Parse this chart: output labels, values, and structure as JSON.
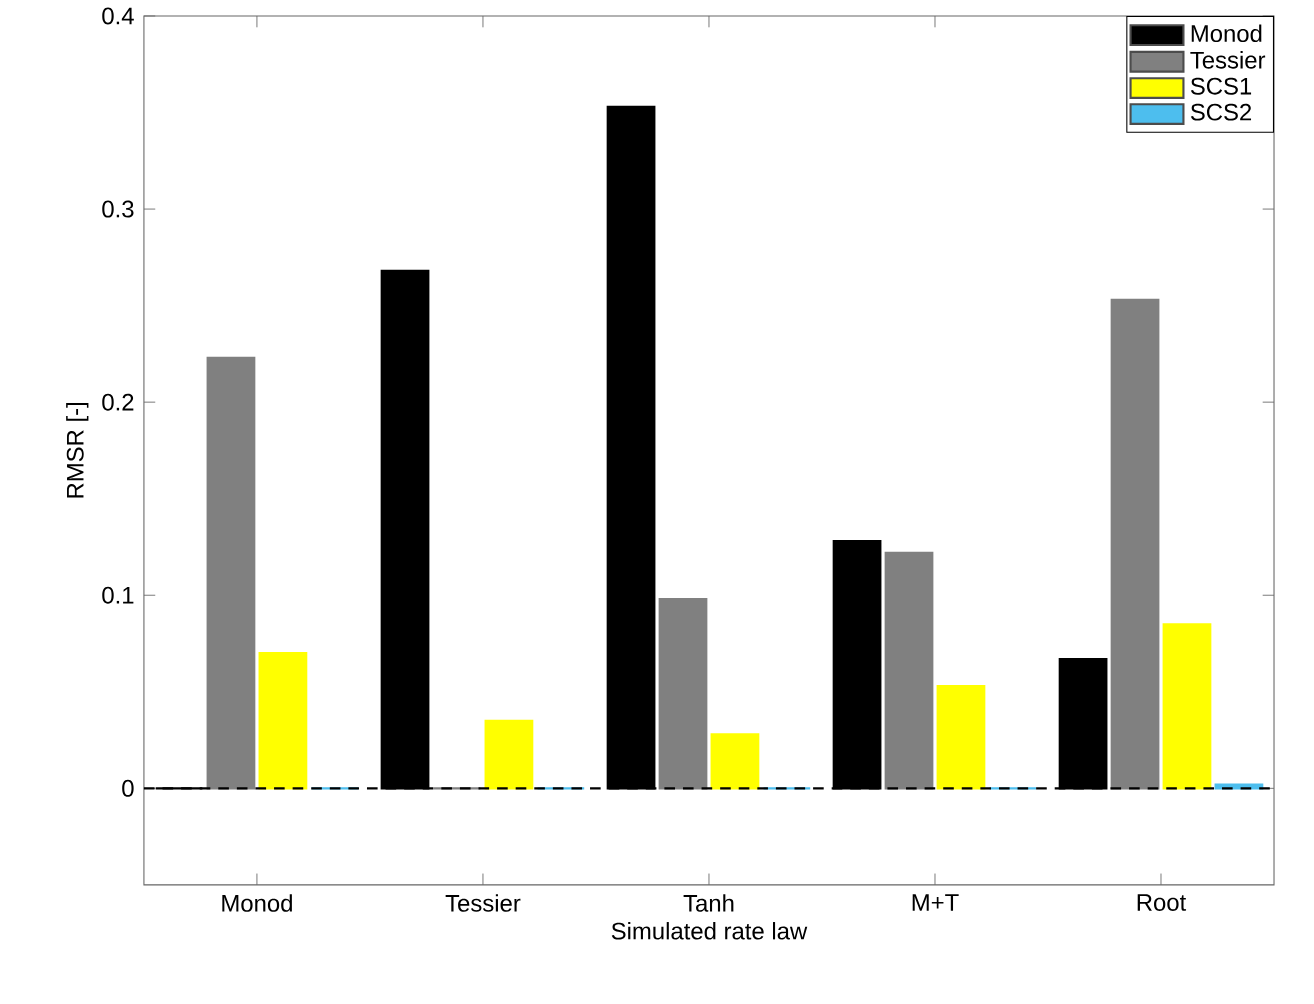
{
  "chart_data": {
    "type": "bar",
    "xlabel": "Simulated rate law",
    "ylabel": "RMSR [-]",
    "categories": [
      "Monod",
      "Tessier",
      "Tanh",
      "M+T",
      "Root"
    ],
    "series": [
      {
        "name": "Monod",
        "color": "#000000",
        "values": [
          0.0,
          0.268,
          0.353,
          0.128,
          0.067
        ]
      },
      {
        "name": "Tessier",
        "color": "#808080",
        "values": [
          0.223,
          0.0,
          0.098,
          0.122,
          0.253
        ]
      },
      {
        "name": "SCS1",
        "color": "#ffff00",
        "values": [
          0.07,
          0.035,
          0.028,
          0.053,
          0.085
        ]
      },
      {
        "name": "SCS2",
        "color": "#4dbeee",
        "values": [
          0.0,
          0.0,
          0.0,
          0.0,
          0.002
        ]
      }
    ],
    "ylim": [
      -0.05,
      0.4
    ],
    "yticks": [
      0,
      0.1,
      0.2,
      0.3,
      0.4
    ],
    "ref_lines": [
      {
        "axis": "y",
        "value": 0,
        "color": "#000000",
        "line_style": "dashed"
      }
    ],
    "legend": "top right",
    "grid": false
  }
}
